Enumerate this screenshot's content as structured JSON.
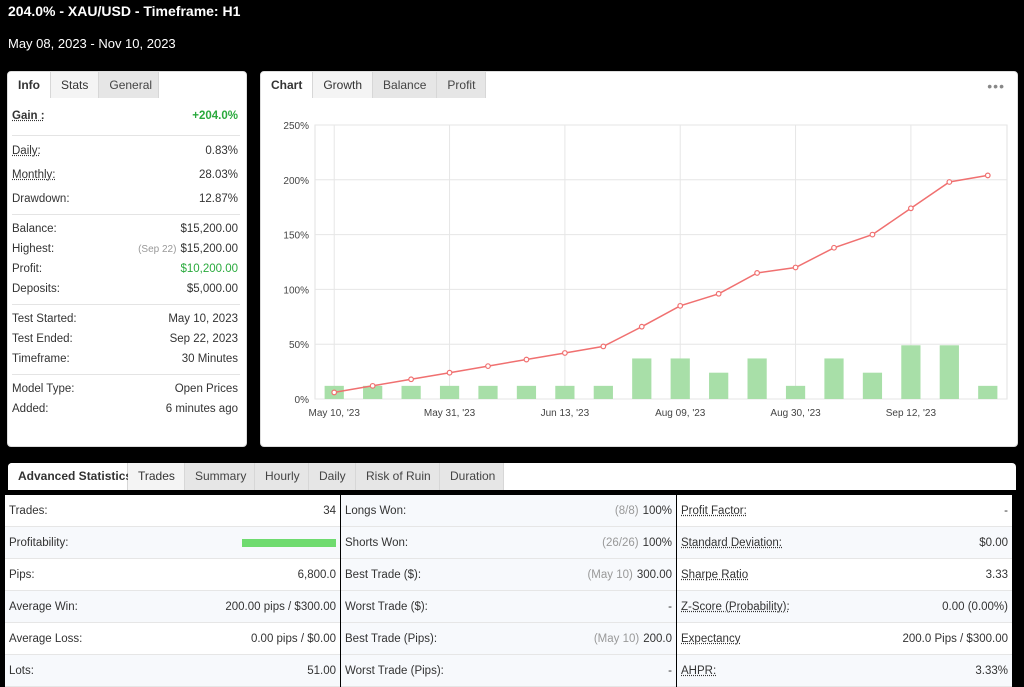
{
  "header": {
    "title": "204.0% - XAU/USD - Timeframe: H1",
    "range": "May 08, 2023 - Nov 10, 2023"
  },
  "info_tabs": [
    "Info",
    "Stats",
    "General"
  ],
  "info": {
    "gain": {
      "label": "Gain :",
      "value": "+204.0%"
    },
    "daily": {
      "label": "Daily:",
      "value": "0.83%"
    },
    "monthly": {
      "label": "Monthly:",
      "value": "28.03%"
    },
    "drawdown": {
      "label": "Drawdown:",
      "value": "12.87%"
    },
    "balance": {
      "label": "Balance:",
      "value": "$15,200.00"
    },
    "highest": {
      "label": "Highest:",
      "note": "(Sep 22)",
      "value": "$15,200.00"
    },
    "profit": {
      "label": "Profit:",
      "value": "$10,200.00"
    },
    "deposits": {
      "label": "Deposits:",
      "value": "$5,000.00"
    },
    "test_started": {
      "label": "Test Started:",
      "value": "May 10, 2023"
    },
    "test_ended": {
      "label": "Test Ended:",
      "value": "Sep 22, 2023"
    },
    "timeframe": {
      "label": "Timeframe:",
      "value": "30 Minutes"
    },
    "model_type": {
      "label": "Model Type:",
      "value": "Open Prices"
    },
    "added": {
      "label": "Added:",
      "value": "6 minutes ago"
    }
  },
  "chart_tabs": [
    "Chart",
    "Growth",
    "Balance",
    "Profit"
  ],
  "chart_menu": "•••",
  "chart_data": {
    "type": "line",
    "y_ticks": [
      "0%",
      "50%",
      "100%",
      "150%",
      "200%",
      "250%"
    ],
    "ylim": [
      0,
      250
    ],
    "x_tick_labels": [
      "May 10, '23",
      "May 31, '23",
      "Jun 13, '23",
      "Aug 09, '23",
      "Aug 30, '23",
      "Sep 12, '23"
    ],
    "x_tick_index": [
      0,
      3,
      6,
      9,
      12,
      15
    ],
    "grid": true,
    "line_color": "#f07070",
    "bar_color": "#a8dfa8",
    "growth": [
      6,
      12,
      18,
      24,
      30,
      36,
      42,
      48,
      66,
      85,
      96,
      115,
      120,
      138,
      150,
      174,
      198,
      204
    ],
    "bars": [
      12,
      12,
      12,
      12,
      12,
      12,
      12,
      12,
      37,
      37,
      24,
      37,
      12,
      37,
      24,
      49,
      49,
      12
    ]
  },
  "adv_tabs": [
    "Advanced Statistics",
    "Trades",
    "Summary",
    "Hourly",
    "Daily",
    "Risk of Ruin",
    "Duration"
  ],
  "stats": {
    "col1": [
      {
        "label": "Trades:",
        "value": "34"
      },
      {
        "label": "Profitability:",
        "value": "",
        "fill": 1.0
      },
      {
        "label": "Pips:",
        "value": "6,800.0"
      },
      {
        "label": "Average Win:",
        "value": "200.00 pips / $300.00"
      },
      {
        "label": "Average Loss:",
        "value": "0.00 pips / $0.00"
      },
      {
        "label": "Lots:",
        "value": "51.00"
      }
    ],
    "col2": [
      {
        "label": "Longs Won:",
        "note": "(8/8)",
        "value": "100%"
      },
      {
        "label": "Shorts Won:",
        "note": "(26/26)",
        "value": "100%"
      },
      {
        "label": "Best Trade ($):",
        "note": "(May 10)",
        "value": "300.00"
      },
      {
        "label": "Worst Trade ($):",
        "note": "",
        "value": "-"
      },
      {
        "label": "Best Trade (Pips):",
        "note": "(May 10)",
        "value": "200.0"
      },
      {
        "label": "Worst Trade (Pips):",
        "note": "",
        "value": "-"
      }
    ],
    "col3": [
      {
        "label": "Profit Factor:",
        "value": "-"
      },
      {
        "label": "Standard Deviation:",
        "value": "$0.00"
      },
      {
        "label": "Sharpe Ratio",
        "value": "3.33"
      },
      {
        "label": "Z-Score (Probability):",
        "value": "0.00 (0.00%)"
      },
      {
        "label": "Expectancy",
        "value": "200.0 Pips / $300.00"
      },
      {
        "label": "AHPR:",
        "value": "3.33%"
      }
    ]
  }
}
